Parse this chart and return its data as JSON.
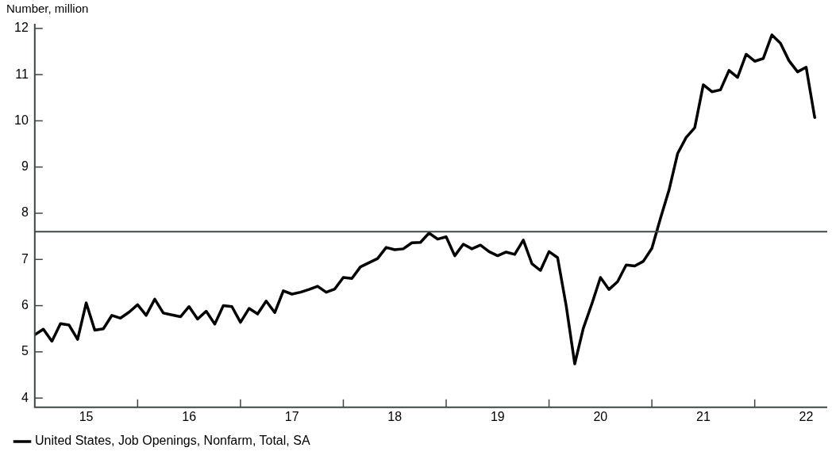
{
  "chart_data": {
    "type": "line",
    "ylabel": "Number, million",
    "x": [
      "2015-01",
      "2015-02",
      "2015-03",
      "2015-04",
      "2015-05",
      "2015-06",
      "2015-07",
      "2015-08",
      "2015-09",
      "2015-10",
      "2015-11",
      "2015-12",
      "2016-01",
      "2016-02",
      "2016-03",
      "2016-04",
      "2016-05",
      "2016-06",
      "2016-07",
      "2016-08",
      "2016-09",
      "2016-10",
      "2016-11",
      "2016-12",
      "2017-01",
      "2017-02",
      "2017-03",
      "2017-04",
      "2017-05",
      "2017-06",
      "2017-07",
      "2017-08",
      "2017-09",
      "2017-10",
      "2017-11",
      "2017-12",
      "2018-01",
      "2018-02",
      "2018-03",
      "2018-04",
      "2018-05",
      "2018-06",
      "2018-07",
      "2018-08",
      "2018-09",
      "2018-10",
      "2018-11",
      "2018-12",
      "2019-01",
      "2019-02",
      "2019-03",
      "2019-04",
      "2019-05",
      "2019-06",
      "2019-07",
      "2019-08",
      "2019-09",
      "2019-10",
      "2019-11",
      "2019-12",
      "2020-01",
      "2020-02",
      "2020-03",
      "2020-04",
      "2020-05",
      "2020-06",
      "2020-07",
      "2020-08",
      "2020-09",
      "2020-10",
      "2020-11",
      "2020-12",
      "2021-01",
      "2021-02",
      "2021-03",
      "2021-04",
      "2021-05",
      "2021-06",
      "2021-07",
      "2021-08",
      "2021-09",
      "2021-10",
      "2021-11",
      "2021-12",
      "2022-01",
      "2022-02",
      "2022-03",
      "2022-04",
      "2022-05",
      "2022-06",
      "2022-07",
      "2022-08"
    ],
    "series": [
      {
        "name": "United States, Job Openings, Nonfarm, Total, SA",
        "color": "#000000",
        "values": [
          5.37,
          5.49,
          5.23,
          5.61,
          5.58,
          5.27,
          6.06,
          5.47,
          5.5,
          5.79,
          5.73,
          5.86,
          6.02,
          5.79,
          6.14,
          5.84,
          5.8,
          5.76,
          5.98,
          5.71,
          5.88,
          5.6,
          6.0,
          5.98,
          5.64,
          5.94,
          5.82,
          6.1,
          5.85,
          6.32,
          6.25,
          6.29,
          6.35,
          6.42,
          6.29,
          6.36,
          6.61,
          6.59,
          6.84,
          6.93,
          7.02,
          7.26,
          7.21,
          7.23,
          7.36,
          7.37,
          7.57,
          7.44,
          7.49,
          7.08,
          7.33,
          7.23,
          7.31,
          7.17,
          7.08,
          7.16,
          7.11,
          7.42,
          6.91,
          6.76,
          7.17,
          7.04,
          6.0,
          4.74,
          5.51,
          6.04,
          6.61,
          6.35,
          6.52,
          6.88,
          6.86,
          6.96,
          7.24,
          7.89,
          8.5,
          9.29,
          9.64,
          9.85,
          10.78,
          10.63,
          10.67,
          11.09,
          10.94,
          11.44,
          11.29,
          11.35,
          11.86,
          11.68,
          11.3,
          11.06,
          11.16,
          10.07
        ]
      }
    ],
    "xlim": [
      "2015-01",
      "2022-09-15"
    ],
    "xticks": [
      {
        "value": "2015-07",
        "label": "15"
      },
      {
        "value": "2016-01",
        "label": null
      },
      {
        "value": "2016-07",
        "label": "16"
      },
      {
        "value": "2017-01",
        "label": null
      },
      {
        "value": "2017-07",
        "label": "17"
      },
      {
        "value": "2018-01",
        "label": null
      },
      {
        "value": "2018-07",
        "label": "18"
      },
      {
        "value": "2019-01",
        "label": null
      },
      {
        "value": "2019-07",
        "label": "19"
      },
      {
        "value": "2020-01",
        "label": null
      },
      {
        "value": "2020-07",
        "label": "20"
      },
      {
        "value": "2021-01",
        "label": null
      },
      {
        "value": "2021-07",
        "label": "21"
      },
      {
        "value": "2022-01",
        "label": null
      },
      {
        "value": "2022-07",
        "label": "22"
      }
    ],
    "ylim": [
      3.8,
      12.1
    ],
    "yticks": [
      4,
      5,
      6,
      7,
      8,
      9,
      10,
      11,
      12
    ],
    "ref_lines": [
      {
        "axis": "y",
        "value": 7.6,
        "color": "#3c4a44"
      }
    ],
    "grid": false,
    "legend": "bottom left",
    "marker": "none",
    "line_style": "solid"
  }
}
